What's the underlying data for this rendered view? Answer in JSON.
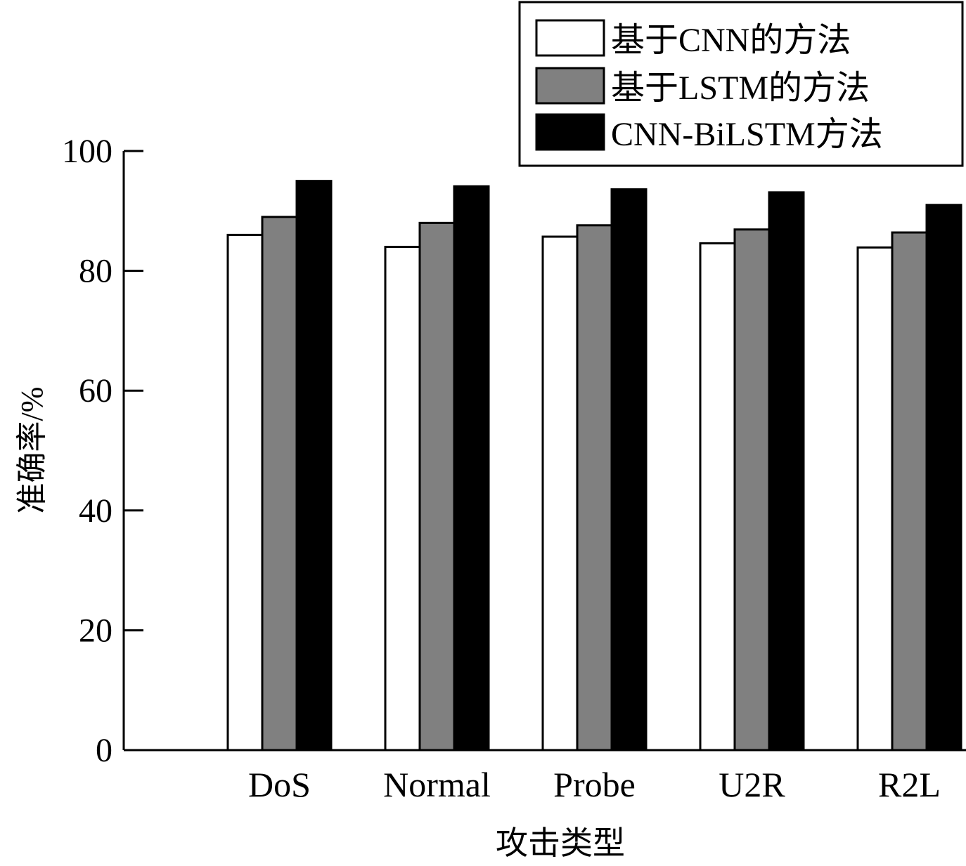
{
  "chart_data": {
    "type": "bar",
    "xlabel": "攻击类型",
    "ylabel": "准确率/%",
    "ylim": [
      0,
      100
    ],
    "yticks": [
      0,
      20,
      40,
      60,
      80,
      100
    ],
    "grid": false,
    "legend_position": "top-right",
    "categories": [
      "DoS",
      "Normal",
      "Probe",
      "U2R",
      "R2L"
    ],
    "series": [
      {
        "name": "基于CNN的方法",
        "color": "#ffffff",
        "values": [
          86.0,
          84.0,
          85.7,
          84.6,
          83.9
        ]
      },
      {
        "name": "基于LSTM的方法",
        "color": "#808080",
        "values": [
          89.0,
          88.0,
          87.6,
          86.9,
          86.4
        ]
      },
      {
        "name": "CNN-BiLSTM方法",
        "color": "#000000",
        "values": [
          95.0,
          94.1,
          93.6,
          93.1,
          91.0
        ]
      }
    ]
  }
}
